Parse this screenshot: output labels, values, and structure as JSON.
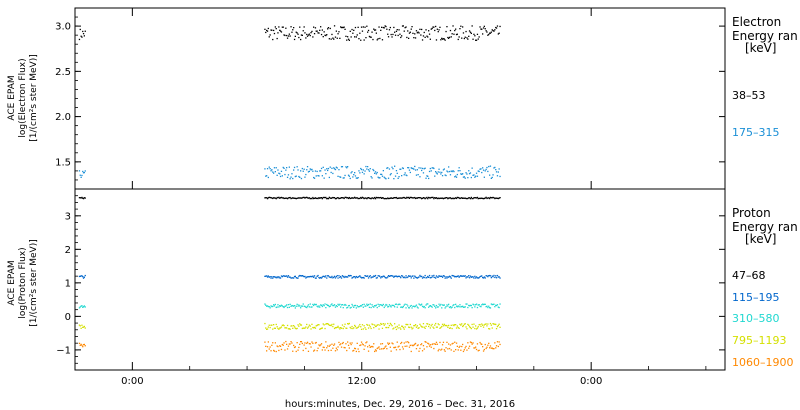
{
  "colors": {
    "black": "#000000",
    "blue1": "#0066cc",
    "blue2": "#1a8fd6",
    "cyan": "#20d8d0",
    "yellow": "#d4e000",
    "orange": "#ff8800"
  },
  "chart_data": [
    {
      "type": "scatter",
      "panel": "electron",
      "ylabel_lines": [
        "ACE EPAM",
        "log(Electron Flux)",
        "[1/(cm²s ster MeV)]"
      ],
      "ylim": [
        1.2,
        3.2
      ],
      "yticks": [
        1.5,
        2.0,
        2.5,
        3.0
      ],
      "ytick_labels": [
        "1.5",
        "2.0",
        "2.5",
        "3.0"
      ],
      "legend_title_lines": [
        "Electron",
        "Energy ran",
        "[keV]"
      ],
      "series": [
        {
          "name": "38–53",
          "color": "#000000",
          "segments": [
            {
              "x_start": -2.8,
              "x_end": -2.5,
              "mean": 2.92,
              "amp": 0.06
            },
            {
              "x_start": 6.9,
              "x_end": 19.2,
              "mean": 2.93,
              "amp": 0.08
            }
          ]
        },
        {
          "name": "175–315",
          "color": "#1a8fd6",
          "segments": [
            {
              "x_start": -2.8,
              "x_end": -2.5,
              "mean": 1.37,
              "amp": 0.04
            },
            {
              "x_start": 6.9,
              "x_end": 19.2,
              "mean": 1.39,
              "amp": 0.07
            }
          ]
        }
      ]
    },
    {
      "type": "scatter",
      "panel": "proton",
      "ylabel_lines": [
        "ACE EPAM",
        "log(Proton Flux)",
        "[1/(cm²s ster MeV)]"
      ],
      "ylim": [
        -1.6,
        3.8
      ],
      "yticks": [
        -1,
        0,
        1,
        2,
        3
      ],
      "ytick_labels": [
        "−1",
        "0",
        "1",
        "2",
        "3"
      ],
      "legend_title_lines": [
        "Proton",
        "Energy ran",
        "[keV]"
      ],
      "series": [
        {
          "name": "47–68",
          "color": "#000000",
          "segments": [
            {
              "x_start": -2.8,
              "x_end": -2.5,
              "mean": 3.55,
              "amp": 0.02
            },
            {
              "x_start": 6.9,
              "x_end": 19.2,
              "mean": 3.55,
              "amp": 0.02
            }
          ]
        },
        {
          "name": "115–195",
          "color": "#0066cc",
          "segments": [
            {
              "x_start": -2.8,
              "x_end": -2.5,
              "mean": 1.2,
              "amp": 0.04
            },
            {
              "x_start": 6.9,
              "x_end": 19.2,
              "mean": 1.2,
              "amp": 0.04
            }
          ]
        },
        {
          "name": "310–580",
          "color": "#20d8d0",
          "segments": [
            {
              "x_start": -2.8,
              "x_end": -2.5,
              "mean": 0.3,
              "amp": 0.05
            },
            {
              "x_start": 6.9,
              "x_end": 19.2,
              "mean": 0.33,
              "amp": 0.06
            }
          ]
        },
        {
          "name": "795–1193",
          "color": "#d4e000",
          "segments": [
            {
              "x_start": -2.8,
              "x_end": -2.5,
              "mean": -0.3,
              "amp": 0.06
            },
            {
              "x_start": 6.9,
              "x_end": 19.2,
              "mean": -0.28,
              "amp": 0.09
            }
          ]
        },
        {
          "name": "1060–1900",
          "color": "#ff8800",
          "segments": [
            {
              "x_start": -2.8,
              "x_end": -2.5,
              "mean": -0.85,
              "amp": 0.08
            },
            {
              "x_start": 6.9,
              "x_end": 19.2,
              "mean": -0.88,
              "amp": 0.15
            }
          ]
        }
      ]
    }
  ],
  "x_axis": {
    "xlim": [
      -3,
      31
    ],
    "ticks": [
      0,
      12,
      24
    ],
    "tick_labels": [
      "0:00",
      "12:00",
      "0:00"
    ],
    "xlabel": "hours:minutes, Dec. 29, 2016 – Dec. 31, 2016"
  }
}
